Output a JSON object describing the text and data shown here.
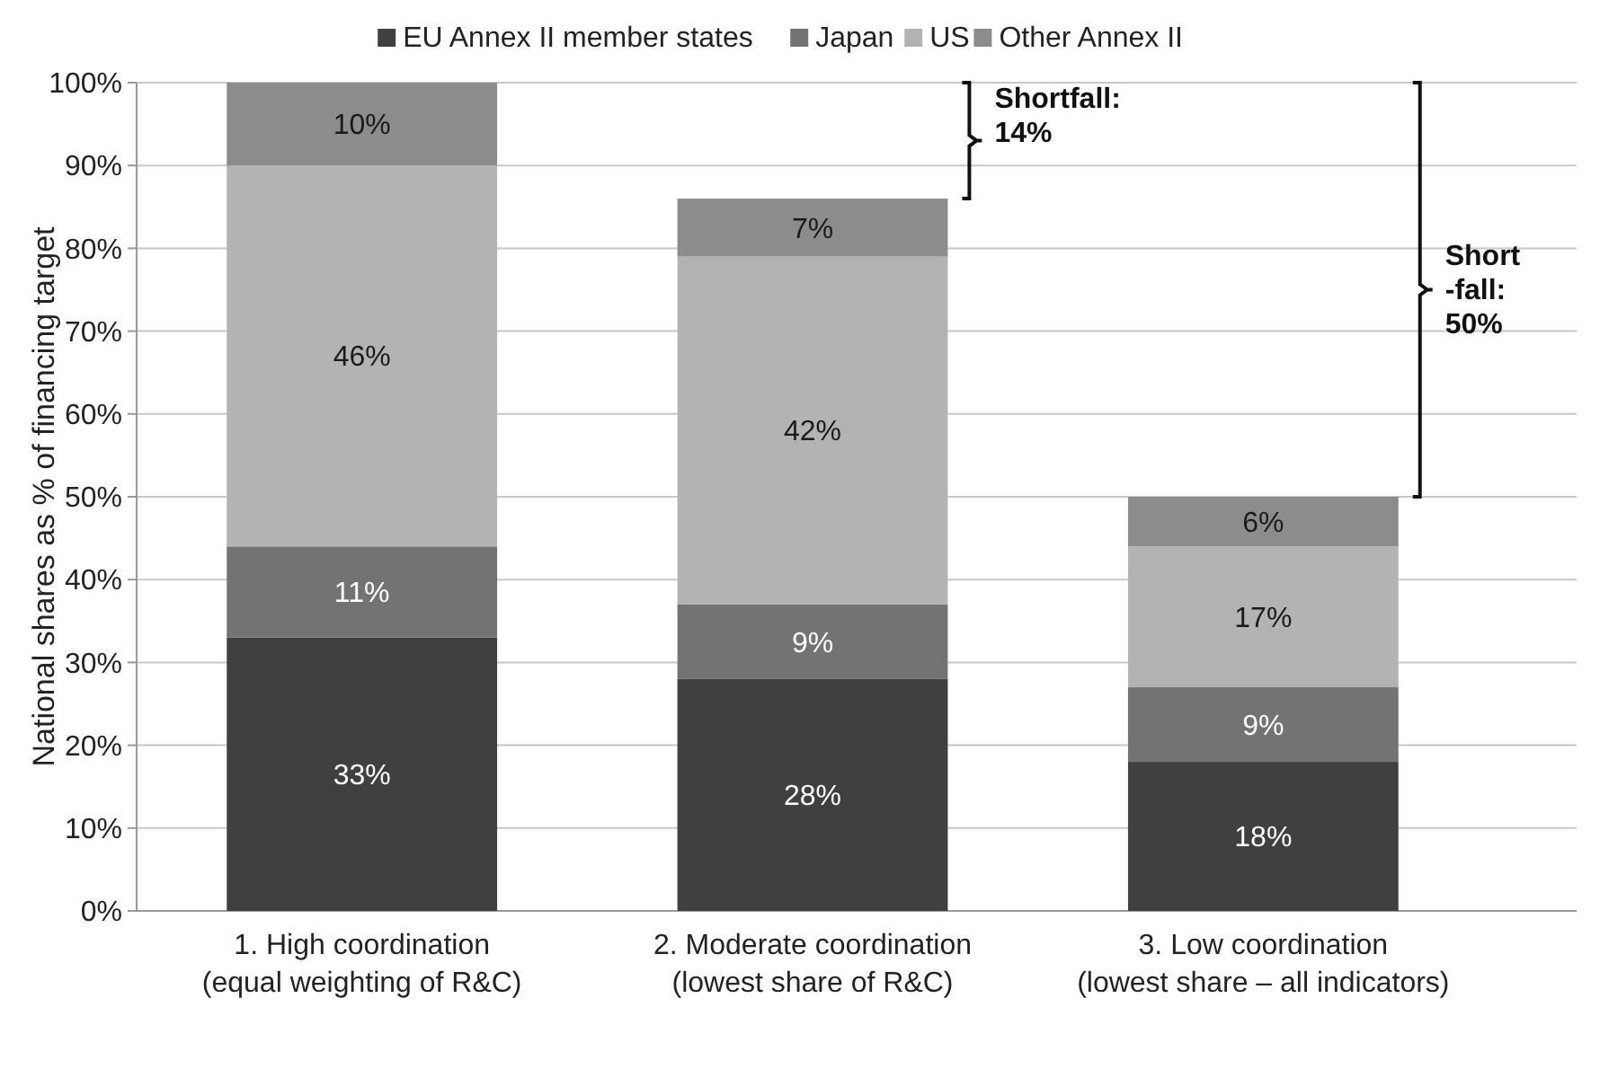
{
  "chart_data": {
    "type": "bar",
    "stacked": true,
    "ylabel": "National shares as % of financing target",
    "categories": [
      "1. High coordination\n(equal weighting of R&C)",
      "2. Moderate coordination\n(lowest share of R&C)",
      "3. Low coordination\n(lowest share – all indicators)"
    ],
    "series": [
      {
        "name": "EU Annex II member states",
        "color": "#404040",
        "values": [
          33,
          28,
          18
        ],
        "value_labels": [
          "33%",
          "28%",
          "18%"
        ]
      },
      {
        "name": "Japan",
        "color": "#737373",
        "values": [
          11,
          9,
          9
        ],
        "value_labels": [
          "11%",
          "9%",
          "9%"
        ]
      },
      {
        "name": "US",
        "color": "#b3b3b3",
        "values": [
          46,
          42,
          17
        ],
        "value_labels": [
          "46%",
          "42%",
          "17%"
        ]
      },
      {
        "name": "Other Annex II",
        "color": "#8c8c8c",
        "values": [
          10,
          7,
          6
        ],
        "value_labels": [
          "10%",
          "7%",
          "6%"
        ]
      }
    ],
    "ylim": [
      0,
      100
    ],
    "yticks": [
      {
        "value": 0,
        "label": "0%"
      },
      {
        "value": 10,
        "label": "10%"
      },
      {
        "value": 20,
        "label": "20%"
      },
      {
        "value": 30,
        "label": "30%"
      },
      {
        "value": 40,
        "label": "40%"
      },
      {
        "value": 50,
        "label": "50%"
      },
      {
        "value": 60,
        "label": "60%"
      },
      {
        "value": 70,
        "label": "70%"
      },
      {
        "value": 80,
        "label": "80%"
      },
      {
        "value": 90,
        "label": "90%"
      },
      {
        "value": 100,
        "label": "100%"
      }
    ],
    "grid": "y",
    "legend": "top",
    "annotations": [
      "Shortfall:\n14%",
      "Short\n-fall:\n50%"
    ]
  }
}
